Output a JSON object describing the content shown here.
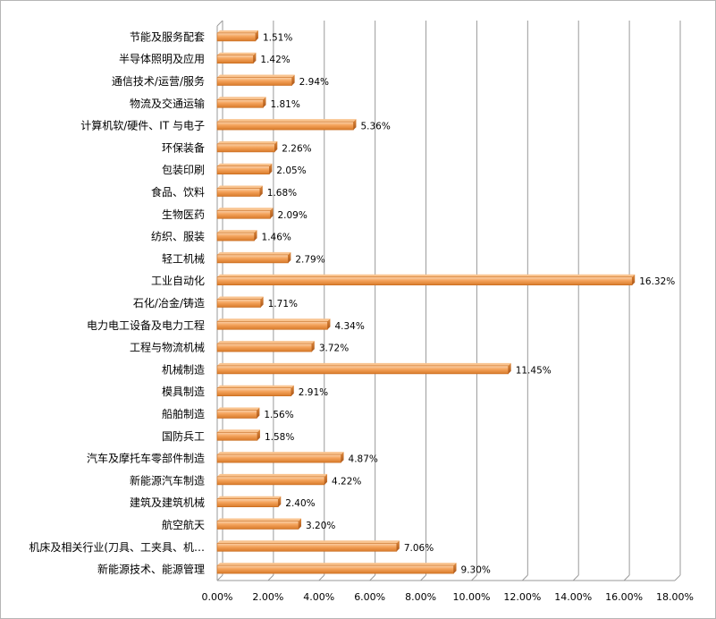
{
  "chart_data": {
    "type": "bar",
    "orientation": "horizontal",
    "categories": [
      "节能及服务配套",
      "半导体照明及应用",
      "通信技术/运营/服务",
      "物流及交通运输",
      "计算机软/硬件、IT 与电子",
      "环保装备",
      "包装印刷",
      "食品、饮料",
      "生物医药",
      "纺织、服装",
      "轻工机械",
      "工业自动化",
      "石化/冶金/铸造",
      "电力电工设备及电力工程",
      "工程与物流机械",
      "机械制造",
      "模具制造",
      "船舶制造",
      "国防兵工",
      "汽车及摩托车零部件制造",
      "新能源汽车制造",
      "建筑及建筑机械",
      "航空航天",
      "机床及相关行业(刀具、工夹具、机…",
      "新能源技术、能源管理"
    ],
    "values": [
      1.51,
      1.42,
      2.94,
      1.81,
      5.36,
      2.26,
      2.05,
      1.68,
      2.09,
      1.46,
      2.79,
      16.32,
      1.71,
      4.34,
      3.72,
      11.45,
      2.91,
      1.56,
      1.58,
      4.87,
      4.22,
      2.4,
      3.2,
      7.06,
      9.3
    ],
    "value_labels": [
      "1.51%",
      "1.42%",
      "2.94%",
      "1.81%",
      "5.36%",
      "2.26%",
      "2.05%",
      "1.68%",
      "2.09%",
      "1.46%",
      "2.79%",
      "16.32%",
      "1.71%",
      "4.34%",
      "3.72%",
      "11.45%",
      "2.91%",
      "1.56%",
      "1.58%",
      "4.87%",
      "4.22%",
      "2.40%",
      "3.20%",
      "7.06%",
      "9.30%"
    ],
    "x_ticks": [
      "0.00%",
      "2.00%",
      "4.00%",
      "6.00%",
      "8.00%",
      "10.00%",
      "12.00%",
      "14.00%",
      "16.00%",
      "18.00%"
    ],
    "xlim": [
      0,
      18
    ],
    "unit": "%",
    "grid": "vertical",
    "legend": "none",
    "bar_color": "#f4a25a",
    "bar_edge_color": "#c96a1c",
    "gridline_color": "#9a9a9a"
  }
}
